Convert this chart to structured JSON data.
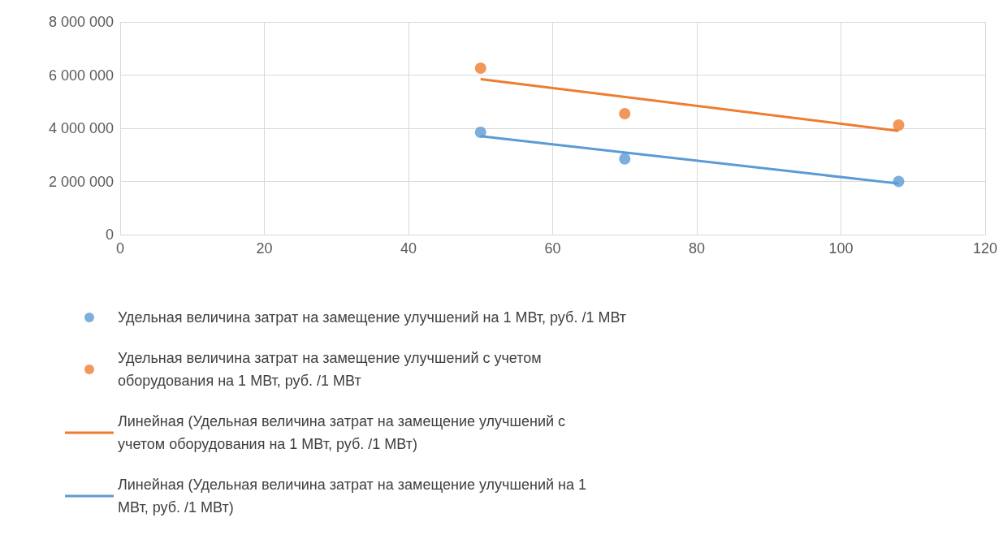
{
  "chart_data": {
    "type": "scatter",
    "xlim": [
      0,
      120
    ],
    "xticks": [
      0,
      20,
      40,
      60,
      80,
      100,
      120
    ],
    "ylim": [
      0,
      8000000
    ],
    "yticks": [
      {
        "value": 0,
        "label": "0"
      },
      {
        "value": 2000000,
        "label": "2 000 000"
      },
      {
        "value": 4000000,
        "label": "4 000 000"
      },
      {
        "value": 6000000,
        "label": "6 000 000"
      },
      {
        "value": 8000000,
        "label": "8 000 000"
      }
    ],
    "grid": true,
    "legend": "bottom",
    "marker": "circle",
    "line_style": "solid",
    "series": [
      {
        "name": "Удельная величина затрат на замещение улучшений на 1 МВт, руб. /1 МВт",
        "color": "#5b9bd5",
        "x": [
          50,
          70,
          108
        ],
        "values": [
          3850000,
          2850000,
          2000000
        ]
      },
      {
        "name": "Удельная величина затрат на замещение улучшений с учетом оборудования на 1 МВт, руб. /1 МВт",
        "color": "#ed7d31",
        "x": [
          50,
          70,
          108
        ],
        "values": [
          6260000,
          4550000,
          4120000
        ]
      },
      {
        "name": "Линейная (Удельная величина затрат на замещение улучшений с учетом оборудования на 1 МВт, руб. /1 МВт)",
        "type": "line",
        "marker": "none",
        "color": "#ed7d31",
        "x": [
          50,
          108
        ],
        "values": [
          5850000,
          3900000
        ]
      },
      {
        "name": "Линейная (Удельная величина затрат на замещение улучшений на 1 МВт, руб. /1 МВт)",
        "type": "line",
        "marker": "none",
        "color": "#5b9bd5",
        "x": [
          50,
          108
        ],
        "values": [
          3700000,
          1920000
        ]
      }
    ]
  }
}
